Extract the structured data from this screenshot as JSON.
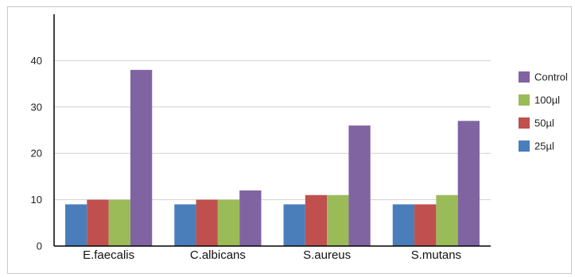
{
  "chart_data": {
    "type": "bar",
    "title": "",
    "xlabel": "",
    "ylabel": "",
    "ylim": [
      0,
      50
    ],
    "yticks": [
      0,
      10,
      20,
      30,
      40
    ],
    "grid": true,
    "legend_position": "right",
    "categories": [
      "E.faecalis",
      "C.albicans",
      "S.aureus",
      "S.mutans"
    ],
    "series": [
      {
        "name": "25µl",
        "color": "#4a7ebb",
        "values": [
          9,
          9,
          9,
          9
        ]
      },
      {
        "name": "50µl",
        "color": "#c0504d",
        "values": [
          10,
          10,
          11,
          9
        ]
      },
      {
        "name": "100µl",
        "color": "#9bbb59",
        "values": [
          10,
          10,
          11,
          11
        ]
      },
      {
        "name": "Control",
        "color": "#8064a2",
        "values": [
          38,
          12,
          26,
          27
        ]
      }
    ],
    "legend_order": [
      "Control",
      "100µl",
      "50µl",
      "25µl"
    ]
  }
}
